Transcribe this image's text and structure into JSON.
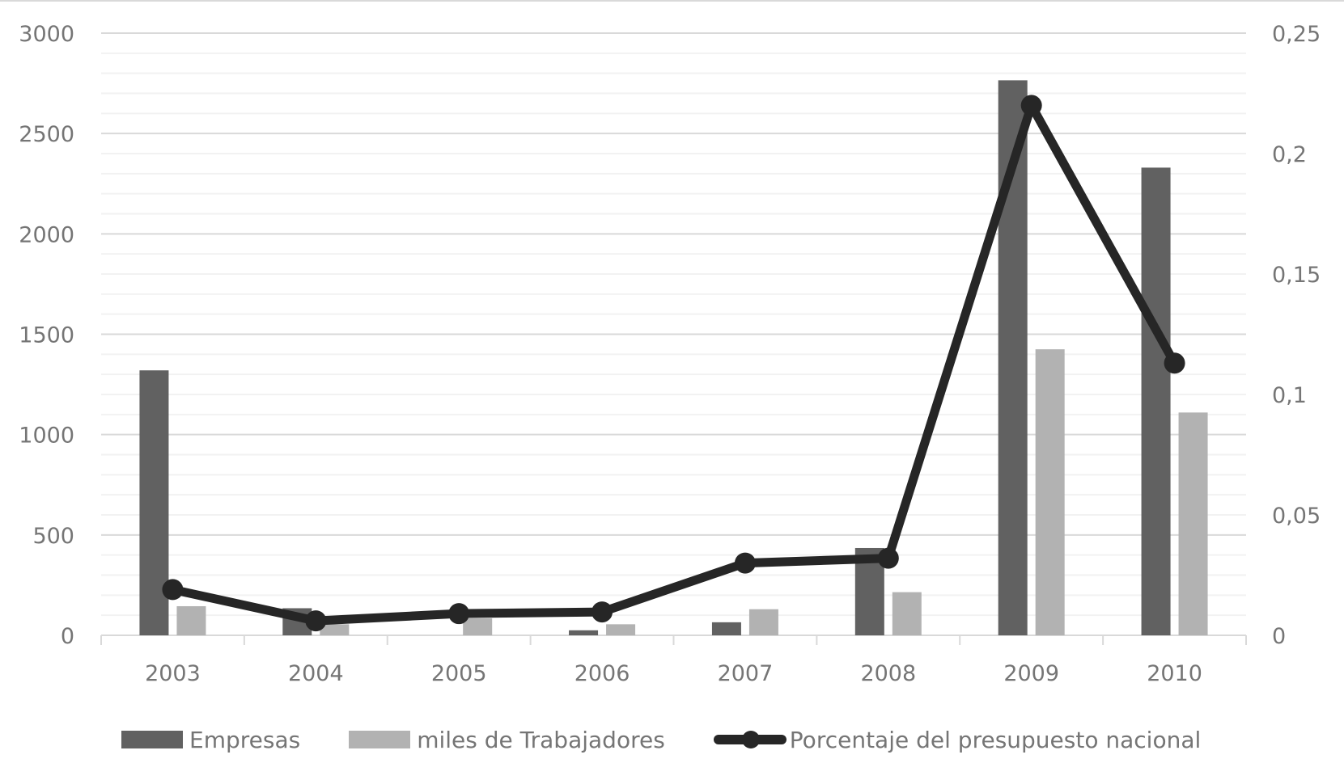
{
  "chart_data": {
    "type": "bar+line",
    "title": "",
    "xlabel": "",
    "ylabel": "",
    "categories": [
      "2003",
      "2004",
      "2005",
      "2006",
      "2007",
      "2008",
      "2009",
      "2010"
    ],
    "series": [
      {
        "name": "Empresas",
        "type": "bar",
        "axis": "left",
        "color": "#616161",
        "values": [
          1320,
          135,
          0,
          25,
          65,
          435,
          2765,
          2330
        ]
      },
      {
        "name": "miles de Trabajadores",
        "type": "bar",
        "axis": "left",
        "color": "#b2b2b2",
        "values": [
          145,
          55,
          85,
          55,
          130,
          215,
          1425,
          1110
        ]
      },
      {
        "name": "Porcentaje del presupuesto nacional",
        "type": "line",
        "axis": "right",
        "color": "#262626",
        "values": [
          0.019,
          0.006,
          0.009,
          0.0097,
          0.03,
          0.032,
          0.22,
          0.113
        ]
      }
    ],
    "left_axis": {
      "ylim": [
        0,
        3000
      ],
      "ticks": [
        "0",
        "500",
        "1000",
        "1500",
        "2000",
        "2500",
        "3000"
      ]
    },
    "right_axis": {
      "ylim": [
        0,
        0.25
      ],
      "ticks": [
        "0",
        "0,05",
        "0,1",
        "0,15",
        "0,2",
        "0,25"
      ]
    },
    "grid": true,
    "legend_position": "bottom"
  },
  "legend": {
    "items": [
      {
        "label": "Empresas"
      },
      {
        "label": "miles de Trabajadores"
      },
      {
        "label": "Porcentaje del presupuesto nacional"
      }
    ]
  }
}
